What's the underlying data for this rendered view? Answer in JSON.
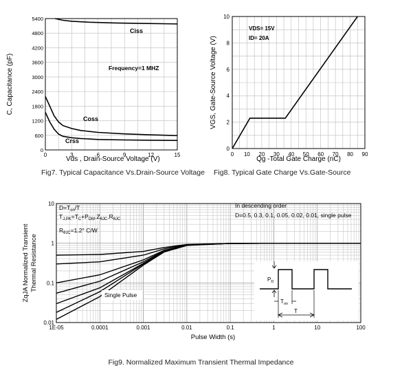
{
  "chart_data": [
    {
      "type": "line",
      "ylabel": "C, Capacitance (pF)",
      "xlabel": "Vds , Drain-Source Voltage (V)",
      "x_ticks": [
        "0",
        "3",
        "6",
        "9",
        "12",
        "15"
      ],
      "y_ticks": [
        "0",
        "600",
        "1200",
        "1800",
        "2400",
        "3000",
        "3600",
        "4200",
        "4800",
        "5400"
      ],
      "xlim": [
        0,
        15
      ],
      "ylim": [
        0,
        5400
      ],
      "grid": true,
      "annotation": "Frequency=1 MHZ",
      "series": [
        {
          "name": "Ciss",
          "x": [
            1.1,
            2,
            3,
            5,
            8,
            11,
            15
          ],
          "y": [
            5400,
            5330,
            5290,
            5250,
            5220,
            5200,
            5180
          ]
        },
        {
          "name": "Coss",
          "x": [
            0,
            0.5,
            1,
            1.5,
            2,
            3,
            4,
            6,
            9,
            12,
            15
          ],
          "y": [
            2200,
            1800,
            1400,
            1150,
            1000,
            880,
            800,
            720,
            660,
            620,
            590
          ]
        },
        {
          "name": "Crss",
          "x": [
            0,
            0.5,
            1,
            1.5,
            2,
            3,
            4,
            6,
            9,
            12,
            15
          ],
          "y": [
            1550,
            1150,
            850,
            650,
            560,
            500,
            470,
            430,
            410,
            400,
            390
          ]
        }
      ],
      "caption": "Fig7. Typical Capacitance Vs.Drain-Source Voltage"
    },
    {
      "type": "line",
      "ylabel": "VGS, Gate-Source Voltage (V)",
      "xlabel": "Qg -Total Gate Charge (nC)",
      "x_ticks": [
        "0",
        "10",
        "20",
        "30",
        "40",
        "50",
        "60",
        "70",
        "80",
        "90"
      ],
      "y_ticks": [
        "0",
        "2",
        "4",
        "6",
        "8",
        "10"
      ],
      "xlim": [
        0,
        90
      ],
      "ylim": [
        0,
        10
      ],
      "grid": true,
      "conditions": [
        "VDS= 15V",
        "ID= 20A"
      ],
      "series": [
        {
          "name": "",
          "x": [
            0,
            12,
            36,
            85
          ],
          "y": [
            0,
            2.3,
            2.3,
            10
          ]
        }
      ],
      "caption": "Fig8. Typical Gate Charge Vs.Gate-Source"
    },
    {
      "type": "line",
      "ylabel": "ZqJA Normalized Transient Thermal Resistance",
      "xlabel": "Pulse Width (s)",
      "x_ticks": [
        "1E-05",
        "0.0001",
        "0.001",
        "0.01",
        "0.1",
        "1",
        "10",
        "100"
      ],
      "y_ticks": [
        "0.01",
        "0.1",
        "1",
        "10"
      ],
      "x_scale": "log",
      "y_scale": "log",
      "xlim": [
        1e-05,
        100
      ],
      "ylim": [
        0.01,
        10
      ],
      "grid": true,
      "notes": [
        "D=Ton/T",
        "TJ,PK=TC+PDM.ZθJC.RθJC",
        "RθJC=1.2° C/W"
      ],
      "legend_text": [
        "In descending order",
        "D=0.5, 0.3, 0.1, 0.05, 0.02, 0.01, single pulse"
      ],
      "single_pulse_label": "Single Pulse",
      "inset_labels": {
        "pd": "PD",
        "ton": "Ton",
        "t": "T"
      },
      "series": [
        {
          "name": "D=0.5",
          "x": [
            1e-05,
            0.0001,
            0.001,
            0.003,
            0.01,
            0.1,
            100
          ],
          "y": [
            0.5,
            0.52,
            0.62,
            0.78,
            0.93,
            0.99,
            1.0
          ]
        },
        {
          "name": "D=0.3",
          "x": [
            1e-05,
            0.0001,
            0.001,
            0.003,
            0.01,
            0.1,
            100
          ],
          "y": [
            0.3,
            0.34,
            0.5,
            0.72,
            0.92,
            0.99,
            1.0
          ]
        },
        {
          "name": "D=0.1",
          "x": [
            1e-05,
            0.0001,
            0.001,
            0.003,
            0.01,
            0.1,
            100
          ],
          "y": [
            0.1,
            0.16,
            0.38,
            0.66,
            0.9,
            0.99,
            1.0
          ]
        },
        {
          "name": "D=0.05",
          "x": [
            1e-05,
            0.0001,
            0.001,
            0.003,
            0.01,
            0.1,
            100
          ],
          "y": [
            0.055,
            0.11,
            0.34,
            0.64,
            0.9,
            0.99,
            1.0
          ]
        },
        {
          "name": "D=0.02",
          "x": [
            1e-05,
            0.0001,
            0.001,
            0.003,
            0.01,
            0.1,
            100
          ],
          "y": [
            0.03,
            0.075,
            0.31,
            0.63,
            0.9,
            0.99,
            1.0
          ]
        },
        {
          "name": "D=0.01",
          "x": [
            1e-05,
            0.0001,
            0.001,
            0.003,
            0.01,
            0.1,
            100
          ],
          "y": [
            0.018,
            0.06,
            0.3,
            0.62,
            0.89,
            0.99,
            1.0
          ]
        },
        {
          "name": "single pulse",
          "x": [
            1e-05,
            0.0001,
            0.001,
            0.003,
            0.01,
            0.1,
            100
          ],
          "y": [
            0.012,
            0.045,
            0.28,
            0.6,
            0.88,
            0.99,
            1.0
          ]
        }
      ],
      "caption": "Fig9. Normalized Maximum Transient Thermal Impedance"
    }
  ]
}
